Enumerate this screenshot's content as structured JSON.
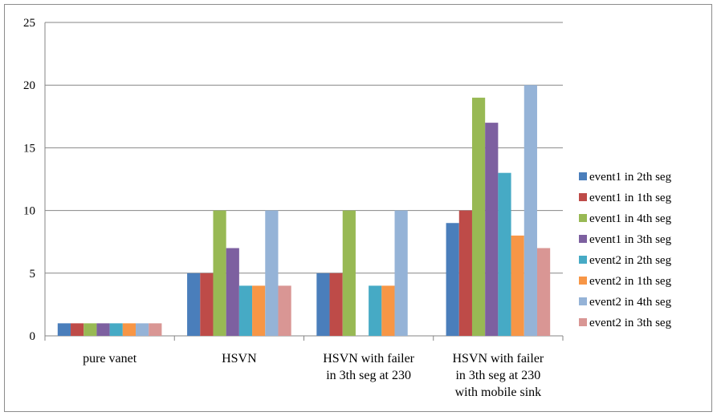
{
  "chart_data": {
    "type": "bar",
    "categories": [
      [
        "pure vanet"
      ],
      [
        "HSVN"
      ],
      [
        "HSVN with failer",
        "in 3th seg at 230"
      ],
      [
        "HSVN with failer",
        "in 3th seg at 230",
        "with mobile sink"
      ]
    ],
    "ylim": [
      0,
      25
    ],
    "yticks": [
      0,
      5,
      10,
      15,
      20,
      25
    ],
    "grid": true,
    "legend_position": "right",
    "series": [
      {
        "name": "event1 in 2th seg",
        "color": "#4A7EBB",
        "values": [
          1,
          5,
          5,
          9
        ]
      },
      {
        "name": "event1 in 1th seg",
        "color": "#BE4B48",
        "values": [
          1,
          5,
          5,
          10
        ]
      },
      {
        "name": "event1 in 4th seg",
        "color": "#98B954",
        "values": [
          1,
          10,
          10,
          19
        ]
      },
      {
        "name": "event1 in 3th seg",
        "color": "#7D60A0",
        "values": [
          1,
          7,
          0,
          17
        ]
      },
      {
        "name": "event2 in 2th seg",
        "color": "#46AAC5",
        "values": [
          1,
          4,
          4,
          13
        ]
      },
      {
        "name": "event2 in 1th seg",
        "color": "#F79646",
        "values": [
          1,
          4,
          4,
          8
        ]
      },
      {
        "name": "event2 in 4th seg",
        "color": "#95B3D7",
        "values": [
          1,
          10,
          10,
          20
        ]
      },
      {
        "name": "event2 in 3th seg",
        "color": "#D99694",
        "values": [
          1,
          4,
          0,
          7
        ]
      }
    ]
  }
}
